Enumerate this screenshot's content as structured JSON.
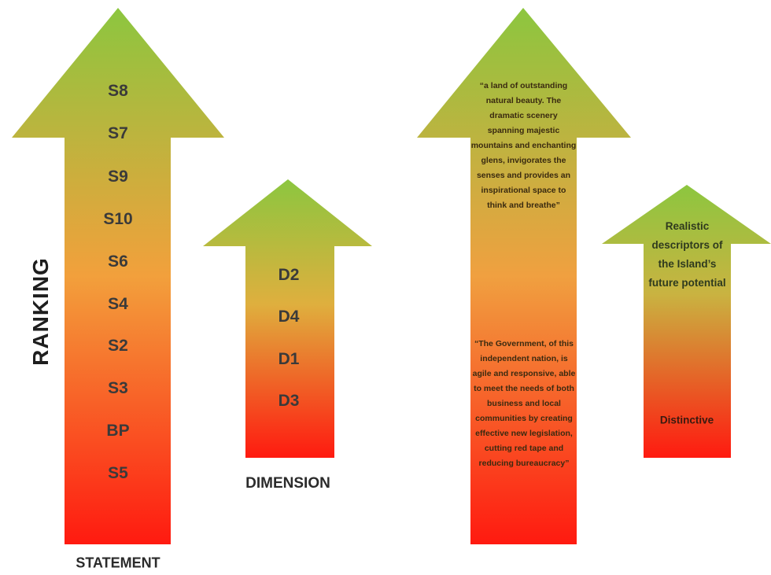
{
  "ranking_label": "RANKING",
  "statement": {
    "caption": "STATEMENT",
    "items": [
      "S8",
      "S7",
      "S9",
      "S10",
      "S6",
      "S4",
      "S2",
      "S3",
      "BP",
      "S5"
    ]
  },
  "dimension": {
    "caption": "DIMENSION",
    "items": [
      "D2",
      "D4",
      "D1",
      "D3"
    ]
  },
  "quotes": {
    "top": "“a land of outstanding natural beauty. The dramatic scenery spanning majestic mountains and enchanting glens, invigorates the senses and provides an inspirational space to think and breathe”",
    "bottom": "“The Government, of this independent nation, is agile and responsive, able to meet the needs of both business and local communities by creating effective new legislation, cutting red tape and reducing bureaucracy”"
  },
  "descriptors": {
    "top": "Realistic descriptors of the Island’s future potential",
    "bottom": "Distinctive"
  },
  "colors": {
    "top": "#8cc63f",
    "mid": "#f0a040",
    "bottom": "#ff1a10"
  }
}
